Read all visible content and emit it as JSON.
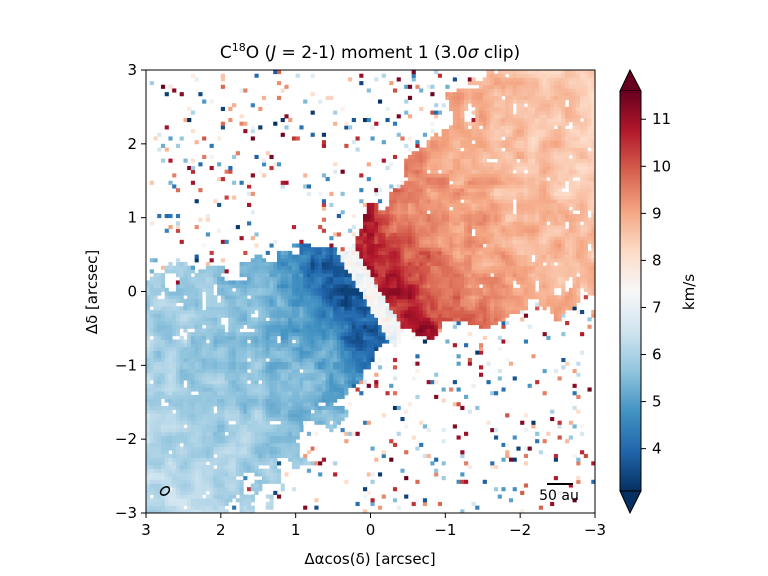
{
  "chart_data": {
    "type": "heatmap",
    "title": {
      "prefix": "C",
      "superscript": "18",
      "suffix_before_italic": "O (",
      "italic": "J",
      "suffix_after_italic": " =  2-1) moment 1 (3.0",
      "sigma": "σ",
      "suffix_end": " clip)"
    },
    "xlabel": "Δαcos(δ) [arcsec]",
    "ylabel": "Δδ  [arcsec]",
    "x_ticks": [
      {
        "value": 3,
        "label": "3"
      },
      {
        "value": 2,
        "label": "2"
      },
      {
        "value": 1,
        "label": "1"
      },
      {
        "value": 0,
        "label": "0"
      },
      {
        "value": -1,
        "label": "−1"
      },
      {
        "value": -2,
        "label": "−2"
      },
      {
        "value": -3,
        "label": "−3"
      }
    ],
    "y_ticks": [
      {
        "value": 3,
        "label": "3"
      },
      {
        "value": 2,
        "label": "2"
      },
      {
        "value": 1,
        "label": "1"
      },
      {
        "value": 0,
        "label": "0"
      },
      {
        "value": -1,
        "label": "−1"
      },
      {
        "value": -2,
        "label": "−2"
      },
      {
        "value": -3,
        "label": "−3"
      }
    ],
    "xlim": [
      3,
      -3
    ],
    "ylim": [
      -3,
      3
    ],
    "colorbar": {
      "label": "km/s",
      "range": [
        3.1,
        11.6
      ],
      "ticks": [
        {
          "value": 4,
          "label": "4"
        },
        {
          "value": 5,
          "label": "5"
        },
        {
          "value": 6,
          "label": "6"
        },
        {
          "value": 7,
          "label": "7"
        },
        {
          "value": 8,
          "label": "8"
        },
        {
          "value": 9,
          "label": "9"
        },
        {
          "value": 10,
          "label": "10"
        },
        {
          "value": 11,
          "label": "11"
        }
      ],
      "colormap": "RdBu_r",
      "extend": "both"
    },
    "features": {
      "blue_lobe": {
        "center": [
          0.9,
          0.5
        ],
        "peak_value": 3.5
      },
      "red_lobe": {
        "center": [
          -0.6,
          -0.2
        ],
        "peak_value": 11.2
      },
      "position_angle_deg": 120,
      "systemic_velocity": 7.3
    },
    "scale_bar": {
      "label": "50 au",
      "length_arcsec": 0.35
    },
    "beam": {
      "major_arcsec": 0.12,
      "minor_arcsec": 0.08,
      "pa_deg": 40
    },
    "colors": {
      "cmap_stops": [
        "#053061",
        "#2166ac",
        "#4393c3",
        "#92c5de",
        "#d1e5f0",
        "#f7f7f7",
        "#fddbc7",
        "#f4a582",
        "#d6604d",
        "#b2182b",
        "#67001f"
      ]
    }
  }
}
